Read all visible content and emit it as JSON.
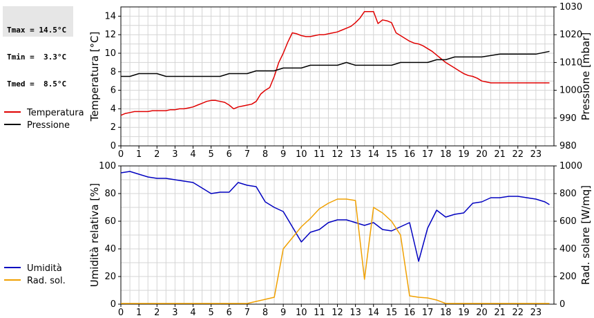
{
  "stats": {
    "tmax": "Tmax = 14.5°C",
    "tmin": "Tmin =  3.3°C",
    "tmed": "Tmed =  8.5°C"
  },
  "chart_data": [
    {
      "type": "line",
      "ylabel": "Temperatura [°C]",
      "y2label": "Pressione [mbar]",
      "xlim": [
        0,
        24
      ],
      "xticks": [
        0,
        1,
        2,
        3,
        4,
        5,
        6,
        7,
        8,
        9,
        10,
        11,
        12,
        13,
        14,
        15,
        16,
        17,
        18,
        19,
        20,
        21,
        22,
        23
      ],
      "ylim": [
        0,
        15
      ],
      "yticks": [
        0,
        2,
        4,
        6,
        8,
        10,
        12,
        14
      ],
      "y2lim": [
        980,
        1030
      ],
      "y2ticks": [
        980,
        990,
        1000,
        1010,
        1020,
        1030
      ],
      "grid": true,
      "legend_position": "left",
      "series": [
        {
          "name": "Temperatura",
          "axis": "left",
          "color": "#e00000",
          "x": [
            0,
            0.25,
            0.5,
            0.75,
            1,
            1.25,
            1.5,
            1.75,
            2,
            2.25,
            2.5,
            2.75,
            3,
            3.25,
            3.5,
            3.75,
            4,
            4.25,
            4.5,
            4.75,
            5,
            5.25,
            5.5,
            5.75,
            6,
            6.25,
            6.5,
            6.75,
            7,
            7.25,
            7.5,
            7.75,
            8,
            8.25,
            8.5,
            8.75,
            9,
            9.25,
            9.5,
            9.75,
            10,
            10.25,
            10.5,
            10.75,
            11,
            11.25,
            11.5,
            11.75,
            12,
            12.25,
            12.5,
            12.75,
            13,
            13.25,
            13.5,
            13.75,
            14,
            14.25,
            14.5,
            14.75,
            15,
            15.25,
            15.5,
            15.75,
            16,
            16.25,
            16.5,
            16.75,
            17,
            17.25,
            17.5,
            17.75,
            18,
            18.25,
            18.5,
            18.75,
            19,
            19.25,
            19.5,
            19.75,
            20,
            20.25,
            20.5,
            20.75,
            21,
            21.25,
            21.5,
            21.75,
            22,
            22.25,
            22.5,
            22.75,
            23,
            23.25,
            23.5,
            23.75
          ],
          "values": [
            3.3,
            3.5,
            3.6,
            3.7,
            3.7,
            3.7,
            3.7,
            3.8,
            3.8,
            3.8,
            3.8,
            3.9,
            3.9,
            4.0,
            4.0,
            4.1,
            4.2,
            4.4,
            4.6,
            4.8,
            4.9,
            4.9,
            4.8,
            4.7,
            4.4,
            4.0,
            4.2,
            4.3,
            4.4,
            4.5,
            4.8,
            5.6,
            6.0,
            6.3,
            7.5,
            9.0,
            10.0,
            11.2,
            12.2,
            12.1,
            11.9,
            11.8,
            11.8,
            11.9,
            12.0,
            12.0,
            12.1,
            12.2,
            12.3,
            12.5,
            12.7,
            12.9,
            13.3,
            13.8,
            14.5,
            14.5,
            14.5,
            13.2,
            13.6,
            13.5,
            13.3,
            12.2,
            11.9,
            11.6,
            11.3,
            11.1,
            11.0,
            10.8,
            10.5,
            10.2,
            9.8,
            9.4,
            9.0,
            8.7,
            8.4,
            8.1,
            7.8,
            7.6,
            7.5,
            7.3,
            7.0,
            6.9,
            6.8,
            6.8,
            6.8,
            6.8,
            6.8,
            6.8,
            6.8,
            6.8,
            6.8,
            6.8,
            6.8,
            6.8,
            6.8,
            6.8
          ]
        },
        {
          "name": "Pressione",
          "axis": "right",
          "color": "#000000",
          "x": [
            0,
            0.5,
            1,
            2,
            2.5,
            3,
            5,
            5.5,
            6,
            7,
            7.5,
            8,
            8.5,
            9,
            10,
            10.5,
            11,
            12,
            12.5,
            13,
            14,
            15,
            15.5,
            16,
            17,
            17.5,
            18,
            18.5,
            19,
            20,
            21,
            22,
            23,
            23.75
          ],
          "values": [
            1005,
            1005,
            1006,
            1006,
            1005,
            1005,
            1005,
            1005,
            1006,
            1006,
            1007,
            1007,
            1007,
            1008,
            1008,
            1009,
            1009,
            1009,
            1010,
            1009,
            1009,
            1009,
            1010,
            1010,
            1010,
            1011,
            1011,
            1012,
            1012,
            1012,
            1013,
            1013,
            1013,
            1014
          ]
        }
      ]
    },
    {
      "type": "line",
      "ylabel": "Umidità relativa [%]",
      "y2label": "Rad. solare [W/mq]",
      "xlim": [
        0,
        24
      ],
      "xticks": [
        0,
        1,
        2,
        3,
        4,
        5,
        6,
        7,
        8,
        9,
        10,
        11,
        12,
        13,
        14,
        15,
        16,
        17,
        18,
        19,
        20,
        21,
        22,
        23
      ],
      "ylim": [
        0,
        100
      ],
      "yticks": [
        0,
        20,
        40,
        60,
        80,
        100
      ],
      "y2lim": [
        0,
        1000
      ],
      "y2ticks": [
        0,
        200,
        400,
        600,
        800,
        1000
      ],
      "grid": true,
      "legend_position": "left",
      "series": [
        {
          "name": "Umidità",
          "axis": "left",
          "color": "#0000c0",
          "x": [
            0,
            0.5,
            1,
            1.5,
            2,
            2.5,
            3,
            3.5,
            4,
            4.5,
            5,
            5.5,
            6,
            6.5,
            7,
            7.5,
            8,
            8.5,
            9,
            9.5,
            10,
            10.5,
            11,
            11.5,
            12,
            12.5,
            13,
            13.5,
            14,
            14.5,
            15,
            15.5,
            16,
            16.5,
            17,
            17.5,
            18,
            18.5,
            19,
            19.5,
            20,
            20.5,
            21,
            21.5,
            22,
            22.5,
            23,
            23.5,
            23.75
          ],
          "values": [
            95,
            96,
            94,
            92,
            91,
            91,
            90,
            89,
            88,
            84,
            80,
            81,
            81,
            88,
            86,
            85,
            74,
            70,
            67,
            56,
            45,
            52,
            54,
            59,
            61,
            61,
            59,
            57,
            59,
            54,
            53,
            56,
            59,
            31,
            55,
            68,
            63,
            65,
            66,
            73,
            74,
            77,
            77,
            78,
            78,
            77,
            76,
            74,
            72
          ]
        },
        {
          "name": "Rad. sol.",
          "axis": "right",
          "color": "#f0a000",
          "x": [
            0,
            1,
            2,
            3,
            4,
            5,
            6,
            7,
            7.5,
            8,
            8.5,
            9,
            9.5,
            10,
            10.5,
            11,
            11.5,
            12,
            12.5,
            13,
            13.5,
            14,
            14.5,
            15,
            15.5,
            16,
            16.5,
            17,
            17.5,
            18,
            19,
            20,
            21,
            22,
            23,
            23.75
          ],
          "values": [
            5,
            5,
            5,
            5,
            5,
            5,
            5,
            5,
            20,
            35,
            50,
            400,
            480,
            560,
            620,
            690,
            730,
            760,
            760,
            750,
            180,
            700,
            660,
            600,
            500,
            60,
            50,
            45,
            30,
            5,
            5,
            5,
            5,
            5,
            5,
            5
          ]
        }
      ]
    }
  ]
}
